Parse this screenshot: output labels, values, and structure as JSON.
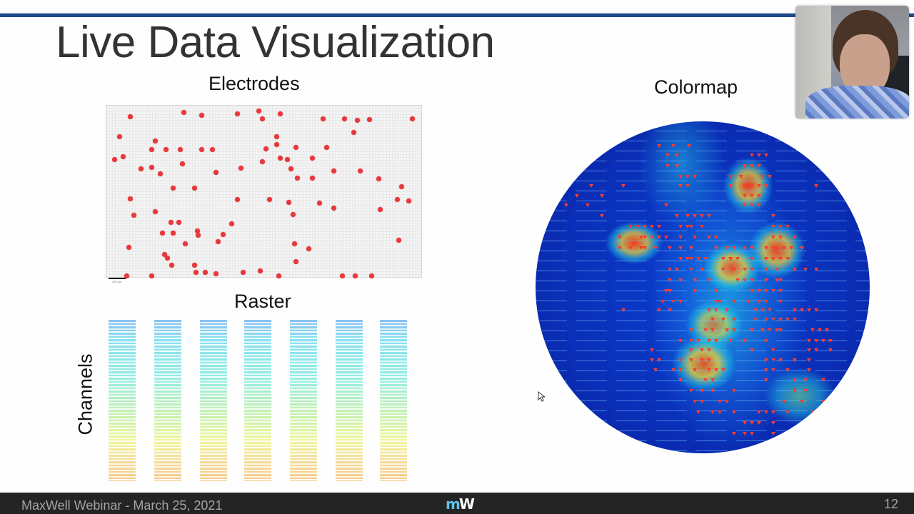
{
  "slide": {
    "title": "Live Data Visualization",
    "page_number": "12",
    "accent_color": "#1f4a8c"
  },
  "panels": {
    "electrodes": {
      "label": "Electrodes",
      "scale_bar_text": "200 µm"
    },
    "raster": {
      "label": "Raster",
      "y_axis_label": "Channels",
      "bursts": 7
    },
    "colormap": {
      "label": "Colormap"
    }
  },
  "footer": {
    "text": "MaxWell Webinar - March 25, 2021",
    "logo": {
      "left": "m",
      "right": "W"
    }
  },
  "webcam": {
    "label": "Presenter video"
  }
}
